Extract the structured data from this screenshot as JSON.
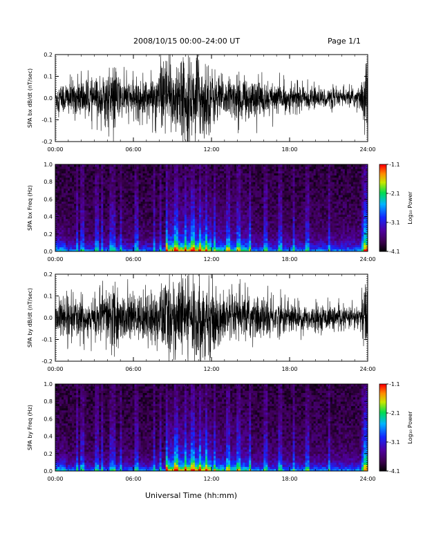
{
  "header": {
    "title": "2008/10/15   00:00–24:00  UT",
    "page": "Page 1/1"
  },
  "xlabel": "Universal Time (hh:mm)",
  "colors": {
    "trace": "#000000",
    "spectrogram_low": "#2a0040",
    "spectrogram_mid": "#1a5cff",
    "spectrogram_high": "#ff2000"
  },
  "colorbar": {
    "label": "Log₁₀ Power",
    "ticks": [
      "-1.1",
      "-2.1",
      "-3.1",
      "-4.1"
    ],
    "values": [
      -1.1,
      -2.1,
      -3.1,
      -4.1
    ],
    "range": [
      -4.1,
      -1.1
    ]
  },
  "chart_data": [
    {
      "type": "line",
      "ylabel": "SPA bx dB/dt (nT/sec)",
      "xlim": [
        0,
        24
      ],
      "ylim": [
        -0.2,
        0.2
      ],
      "xticks": [
        "00:00",
        "06:00",
        "12:00",
        "18:00",
        "24:00"
      ],
      "yticks": [
        "0.2",
        "0.1",
        "0.0",
        "-0.1",
        "-0.2"
      ],
      "ytick_values": [
        0.2,
        0.1,
        0.0,
        -0.1,
        -0.2
      ],
      "envelope": {
        "x": [
          0,
          1,
          2,
          3,
          4,
          4.5,
          5,
          6,
          7,
          8,
          8.5,
          9,
          10,
          10.5,
          11,
          11.5,
          12,
          13,
          14,
          15,
          16,
          17,
          18,
          19,
          20,
          21,
          22,
          23,
          23.5,
          23.8,
          24
        ],
        "amp": [
          0.07,
          0.09,
          0.1,
          0.09,
          0.14,
          0.18,
          0.1,
          0.09,
          0.1,
          0.12,
          0.2,
          0.2,
          0.2,
          0.2,
          0.2,
          0.2,
          0.15,
          0.1,
          0.11,
          0.1,
          0.09,
          0.08,
          0.07,
          0.06,
          0.05,
          0.05,
          0.04,
          0.05,
          0.06,
          0.2,
          0.2
        ]
      }
    },
    {
      "type": "heatmap",
      "ylabel": "SPA bx Freq (Hz)",
      "xlim": [
        0,
        24
      ],
      "ylim": [
        0,
        1.0
      ],
      "xticks": [
        "00:00",
        "06:00",
        "12:00",
        "18:00",
        "24:00"
      ],
      "yticks": [
        "1.0",
        "0.8",
        "0.6",
        "0.4",
        "0.2",
        "0.0"
      ],
      "ytick_values": [
        1.0,
        0.8,
        0.6,
        0.4,
        0.2,
        0.0
      ],
      "zlim": [
        -4.1,
        -1.1
      ]
    },
    {
      "type": "line",
      "ylabel": "SPA by dB/dt (nT/sec)",
      "xlim": [
        0,
        24
      ],
      "ylim": [
        -0.2,
        0.2
      ],
      "xticks": [
        "00:00",
        "06:00",
        "12:00",
        "18:00",
        "24:00"
      ],
      "yticks": [
        "0.2",
        "0.1",
        "0.0",
        "-0.1",
        "-0.2"
      ],
      "ytick_values": [
        0.2,
        0.1,
        0.0,
        -0.1,
        -0.2
      ],
      "envelope": {
        "x": [
          0,
          1,
          2,
          3,
          4,
          4.5,
          5,
          6,
          7,
          8,
          8.5,
          9,
          10,
          10.5,
          11,
          11.5,
          12,
          13,
          14,
          15,
          16,
          17,
          18,
          19,
          20,
          21,
          22,
          23,
          23.5,
          23.8,
          24
        ],
        "amp": [
          0.08,
          0.1,
          0.11,
          0.1,
          0.15,
          0.2,
          0.12,
          0.11,
          0.12,
          0.14,
          0.2,
          0.2,
          0.2,
          0.2,
          0.2,
          0.2,
          0.16,
          0.12,
          0.12,
          0.11,
          0.1,
          0.09,
          0.08,
          0.07,
          0.06,
          0.06,
          0.05,
          0.06,
          0.07,
          0.2,
          0.2
        ]
      }
    },
    {
      "type": "heatmap",
      "ylabel": "SPA by Freq (Hz)",
      "xlim": [
        0,
        24
      ],
      "ylim": [
        0,
        1.0
      ],
      "xticks": [
        "00:00",
        "06:00",
        "12:00",
        "18:00",
        "24:00"
      ],
      "yticks": [
        "1.0",
        "0.8",
        "0.6",
        "0.4",
        "0.2",
        "0.0"
      ],
      "ytick_values": [
        1.0,
        0.8,
        0.6,
        0.4,
        0.2,
        0.0
      ],
      "zlim": [
        -4.1,
        -1.1
      ]
    }
  ]
}
